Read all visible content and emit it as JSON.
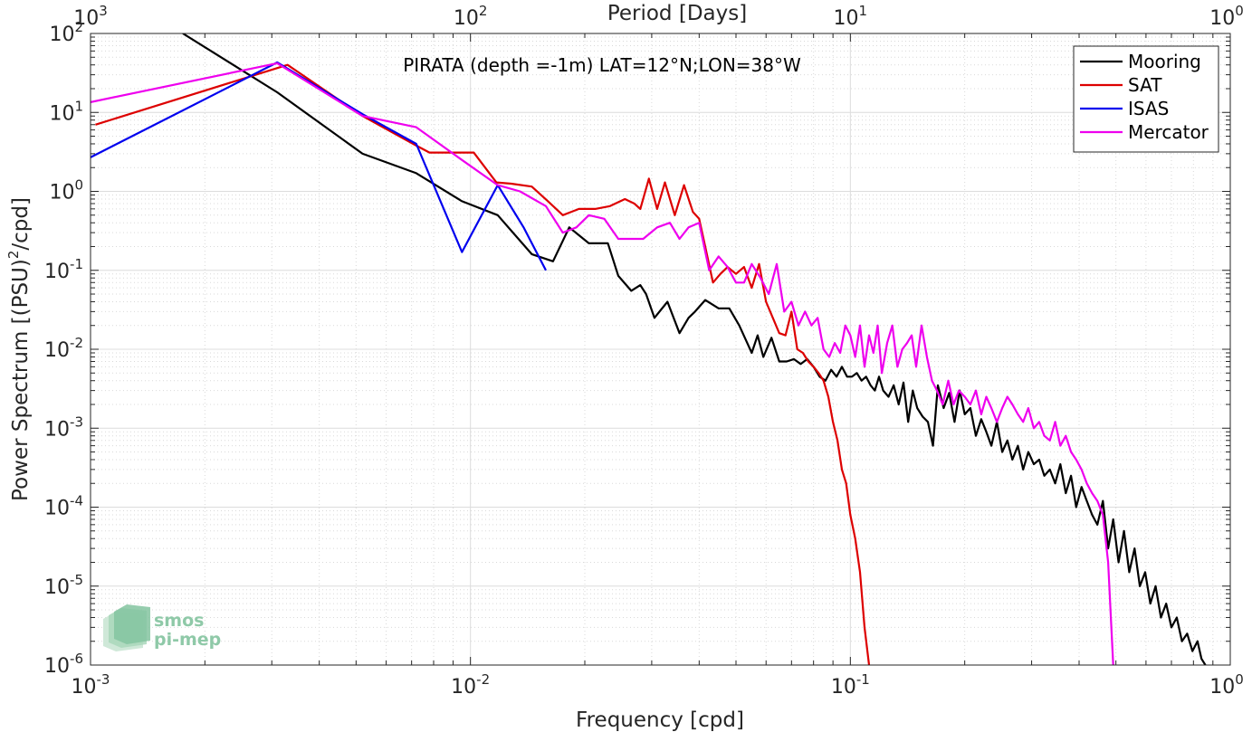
{
  "chart_data": {
    "type": "line",
    "title": "",
    "annotation": "PIRATA (depth =-1m) LAT=12°N;LON=38°W",
    "xlabel": "Frequency [cpd]",
    "ylabel": "Power Spectrum [(PSU)²/cpd]",
    "ylabel_parts": {
      "base": "Power Spectrum [(PSU)",
      "sup": "2",
      "tail": "/cpd]"
    },
    "x2label": "Period [Days]",
    "xscale": "log",
    "yscale": "log",
    "xlim": [
      0.001,
      1
    ],
    "ylim": [
      1e-06,
      100
    ],
    "grid": true,
    "legend_position": "top-right",
    "x_ticks": [
      {
        "value": 0.001,
        "base": "10",
        "exp": "-3"
      },
      {
        "value": 0.01,
        "base": "10",
        "exp": "-2"
      },
      {
        "value": 0.1,
        "base": "10",
        "exp": "-1"
      },
      {
        "value": 1,
        "base": "10",
        "exp": "0"
      }
    ],
    "x2_ticks": [
      {
        "value": 0.001,
        "base": "10",
        "exp": "3"
      },
      {
        "value": 0.01,
        "base": "10",
        "exp": "2"
      },
      {
        "value": 0.1,
        "base": "10",
        "exp": "1"
      },
      {
        "value": 1,
        "base": "10",
        "exp": "0"
      }
    ],
    "y_ticks": [
      {
        "value": 100,
        "base": "10",
        "exp": "2"
      },
      {
        "value": 10,
        "base": "10",
        "exp": "1"
      },
      {
        "value": 1,
        "base": "10",
        "exp": "0"
      },
      {
        "value": 0.1,
        "base": "10",
        "exp": "-1"
      },
      {
        "value": 0.01,
        "base": "10",
        "exp": "-2"
      },
      {
        "value": 0.001,
        "base": "10",
        "exp": "-3"
      },
      {
        "value": 0.0001,
        "base": "10",
        "exp": "-4"
      },
      {
        "value": 1e-05,
        "base": "10",
        "exp": "-5"
      },
      {
        "value": 1e-06,
        "base": "10",
        "exp": "-6"
      }
    ],
    "series": [
      {
        "name": "Mooring",
        "color": "#000000",
        "x": [
          0.00175,
          0.0031,
          0.0052,
          0.0072,
          0.0095,
          0.0118,
          0.0145,
          0.0165,
          0.0182,
          0.0205,
          0.023,
          0.0245,
          0.0265,
          0.028,
          0.029,
          0.0305,
          0.033,
          0.0355,
          0.0375,
          0.039,
          0.0415,
          0.045,
          0.048,
          0.051,
          0.055,
          0.057,
          0.059,
          0.062,
          0.065,
          0.068,
          0.071,
          0.074,
          0.077,
          0.08,
          0.083,
          0.086,
          0.089,
          0.092,
          0.095,
          0.098,
          0.101,
          0.104,
          0.107,
          0.11,
          0.113,
          0.116,
          0.119,
          0.122,
          0.126,
          0.13,
          0.134,
          0.138,
          0.142,
          0.146,
          0.15,
          0.155,
          0.16,
          0.165,
          0.17,
          0.176,
          0.182,
          0.188,
          0.194,
          0.2,
          0.207,
          0.214,
          0.221,
          0.228,
          0.235,
          0.243,
          0.251,
          0.259,
          0.267,
          0.276,
          0.285,
          0.294,
          0.304,
          0.314,
          0.324,
          0.335,
          0.346,
          0.357,
          0.369,
          0.381,
          0.393,
          0.406,
          0.419,
          0.433,
          0.447,
          0.462,
          0.477,
          0.492,
          0.508,
          0.525,
          0.542,
          0.56,
          0.578,
          0.597,
          0.616,
          0.636,
          0.657,
          0.678,
          0.7,
          0.723,
          0.746,
          0.77,
          0.795,
          0.82,
          0.84,
          0.86
        ],
        "values": [
          100,
          18,
          3,
          1.7,
          0.75,
          0.5,
          0.16,
          0.13,
          0.35,
          0.22,
          0.22,
          0.085,
          0.055,
          0.065,
          0.05,
          0.025,
          0.04,
          0.016,
          0.025,
          0.03,
          0.042,
          0.033,
          0.033,
          0.02,
          0.009,
          0.015,
          0.008,
          0.014,
          0.007,
          0.007,
          0.0075,
          0.0065,
          0.0075,
          0.006,
          0.0045,
          0.004,
          0.0055,
          0.0045,
          0.006,
          0.0045,
          0.0045,
          0.005,
          0.004,
          0.0045,
          0.0035,
          0.003,
          0.0045,
          0.003,
          0.0025,
          0.0035,
          0.002,
          0.0038,
          0.0012,
          0.003,
          0.0018,
          0.0014,
          0.0012,
          0.0006,
          0.0035,
          0.0018,
          0.0028,
          0.0012,
          0.003,
          0.0015,
          0.0018,
          0.0008,
          0.0013,
          0.0009,
          0.0006,
          0.0012,
          0.0005,
          0.0007,
          0.0004,
          0.0006,
          0.0003,
          0.0005,
          0.00035,
          0.0004,
          0.00025,
          0.0003,
          0.0002,
          0.00035,
          0.00015,
          0.00025,
          0.0001,
          0.00018,
          0.00012,
          8e-05,
          6e-05,
          0.00012,
          3e-05,
          7e-05,
          2e-05,
          5e-05,
          1.5e-05,
          3e-05,
          1e-05,
          1.5e-05,
          6e-06,
          1e-05,
          4e-06,
          6e-06,
          3e-06,
          4e-06,
          2e-06,
          2.5e-06,
          1.5e-06,
          2e-06,
          1.2e-06,
          1e-06
        ]
      },
      {
        "name": "SAT",
        "color": "#dd0000",
        "x": [
          0.00103,
          0.0033,
          0.0052,
          0.0072,
          0.0078,
          0.0092,
          0.0102,
          0.0117,
          0.0128,
          0.0145,
          0.016,
          0.0175,
          0.0193,
          0.0213,
          0.0233,
          0.0255,
          0.027,
          0.028,
          0.0295,
          0.031,
          0.0325,
          0.0345,
          0.0365,
          0.0385,
          0.04,
          0.0415,
          0.0435,
          0.0455,
          0.0475,
          0.05,
          0.0525,
          0.055,
          0.0575,
          0.06,
          0.0625,
          0.065,
          0.0675,
          0.07,
          0.0725,
          0.075,
          0.0775,
          0.08,
          0.0825,
          0.085,
          0.0875,
          0.09,
          0.0925,
          0.095,
          0.0975,
          0.1,
          0.103,
          0.106,
          0.109,
          0.112
        ],
        "values": [
          7,
          40,
          9,
          3.8,
          3.1,
          3.1,
          3.1,
          1.3,
          1.25,
          1.15,
          0.75,
          0.5,
          0.6,
          0.6,
          0.65,
          0.8,
          0.7,
          0.6,
          1.45,
          0.6,
          1.3,
          0.5,
          1.2,
          0.55,
          0.45,
          0.2,
          0.07,
          0.09,
          0.11,
          0.09,
          0.11,
          0.06,
          0.12,
          0.04,
          0.025,
          0.016,
          0.015,
          0.03,
          0.01,
          0.009,
          0.007,
          0.006,
          0.005,
          0.004,
          0.0025,
          0.0012,
          0.0007,
          0.0003,
          0.0002,
          8e-05,
          4e-05,
          1.5e-05,
          3e-06,
          1e-06
        ]
      },
      {
        "name": "ISAS",
        "color": "#0000ee",
        "x": [
          0.001,
          0.0031,
          0.0052,
          0.0072,
          0.0095,
          0.0118,
          0.0138,
          0.0158
        ],
        "values": [
          2.7,
          43,
          9.5,
          4,
          0.17,
          1.2,
          0.35,
          0.1
        ]
      },
      {
        "name": "Mercator",
        "color": "#ee00ee",
        "x": [
          0.001,
          0.0031,
          0.0052,
          0.0072,
          0.0095,
          0.0118,
          0.0135,
          0.0158,
          0.0175,
          0.019,
          0.0205,
          0.0225,
          0.0245,
          0.0265,
          0.0285,
          0.031,
          0.0335,
          0.0355,
          0.0375,
          0.04,
          0.0425,
          0.045,
          0.0475,
          0.05,
          0.0525,
          0.055,
          0.058,
          0.061,
          0.064,
          0.067,
          0.07,
          0.073,
          0.076,
          0.079,
          0.082,
          0.085,
          0.088,
          0.091,
          0.094,
          0.097,
          0.1,
          0.103,
          0.106,
          0.109,
          0.112,
          0.115,
          0.118,
          0.121,
          0.125,
          0.129,
          0.133,
          0.137,
          0.141,
          0.145,
          0.149,
          0.154,
          0.159,
          0.164,
          0.169,
          0.175,
          0.181,
          0.187,
          0.193,
          0.2,
          0.207,
          0.214,
          0.221,
          0.228,
          0.235,
          0.243,
          0.251,
          0.259,
          0.267,
          0.276,
          0.285,
          0.294,
          0.304,
          0.314,
          0.324,
          0.335,
          0.346,
          0.357,
          0.369,
          0.381,
          0.393,
          0.406,
          0.419,
          0.433,
          0.447,
          0.462,
          0.477,
          0.485,
          0.492
        ],
        "values": [
          13.5,
          42,
          9,
          6.5,
          2.5,
          1.2,
          1,
          0.65,
          0.3,
          0.35,
          0.5,
          0.45,
          0.25,
          0.25,
          0.25,
          0.35,
          0.4,
          0.25,
          0.35,
          0.4,
          0.1,
          0.15,
          0.11,
          0.07,
          0.07,
          0.12,
          0.08,
          0.05,
          0.12,
          0.03,
          0.04,
          0.02,
          0.03,
          0.02,
          0.025,
          0.01,
          0.008,
          0.012,
          0.009,
          0.02,
          0.015,
          0.008,
          0.02,
          0.006,
          0.015,
          0.009,
          0.02,
          0.005,
          0.012,
          0.02,
          0.006,
          0.01,
          0.012,
          0.015,
          0.006,
          0.02,
          0.008,
          0.004,
          0.003,
          0.002,
          0.004,
          0.002,
          0.003,
          0.0025,
          0.002,
          0.003,
          0.0015,
          0.0025,
          0.0018,
          0.0012,
          0.0018,
          0.0025,
          0.002,
          0.0015,
          0.0012,
          0.0018,
          0.001,
          0.0012,
          0.0008,
          0.0007,
          0.0012,
          0.0006,
          0.0008,
          0.0005,
          0.0004,
          0.0003,
          0.0002,
          0.00015,
          0.00012,
          8e-05,
          2e-05,
          4e-06,
          1e-06
        ]
      }
    ]
  },
  "logo": {
    "line1": "smos",
    "line2": "pi-mep",
    "color": "#8fc9a8"
  }
}
